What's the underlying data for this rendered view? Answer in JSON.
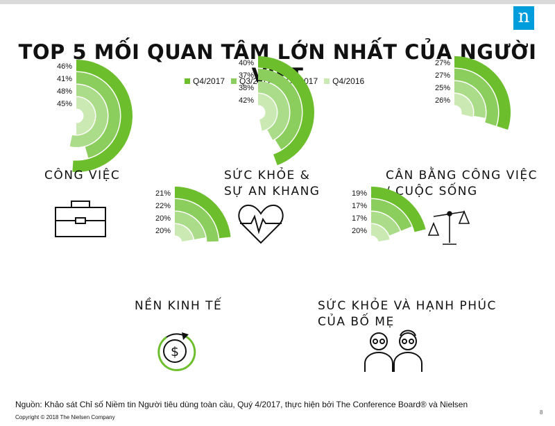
{
  "title": "TOP 5 MỐI QUAN TÂM LỚN NHẤT CỦA NGƯỜI VIỆT",
  "logo_text": "n",
  "legend": [
    {
      "label": "Q4/2017",
      "color": "#6cbe2c"
    },
    {
      "label": "Q3/2017",
      "color": "#8cce5e"
    },
    {
      "label": "Q2/2017",
      "color": "#abdc89"
    },
    {
      "label": "Q4/2016",
      "color": "#cbeab3"
    }
  ],
  "chart_data": {
    "type": "radial-bar",
    "series_names": [
      "Q4/2017",
      "Q3/2017",
      "Q2/2017",
      "Q4/2016"
    ],
    "unit": "%",
    "groups": [
      {
        "label_lines": [
          "CÔNG VIỆC"
        ],
        "icon": "briefcase-icon",
        "values": [
          46,
          41,
          48,
          45
        ]
      },
      {
        "label_lines": [
          "SỨC KHỎE &",
          "SỰ AN KHANG"
        ],
        "icon": "heart-pulse-icon",
        "values": [
          40,
          37,
          38,
          42
        ]
      },
      {
        "label_lines": [
          "CÂN BẰNG CÔNG VIỆC",
          "/ CUỘC SỐNG"
        ],
        "icon": "balance-scale-icon",
        "values": [
          27,
          27,
          25,
          26
        ]
      },
      {
        "label_lines": [
          "NỀN KINH TẾ"
        ],
        "icon": "dollar-cycle-icon",
        "values": [
          21,
          22,
          20,
          20
        ]
      },
      {
        "label_lines": [
          "SỨC KHỎE VÀ HẠNH PHÚC",
          "CỦA BỐ MẸ"
        ],
        "icon": "elderly-parents-icon",
        "values": [
          19,
          17,
          17,
          20
        ]
      }
    ]
  },
  "footer": {
    "source": "Nguồn: Khảo sát Chỉ số Niềm tin Người tiêu dùng toàn cầu, Quý 4/2017, thực hiện bởi The Conference Board® và Nielsen",
    "copyright": "Copyright © 2018 The Nielsen Company",
    "page_number": "8"
  }
}
